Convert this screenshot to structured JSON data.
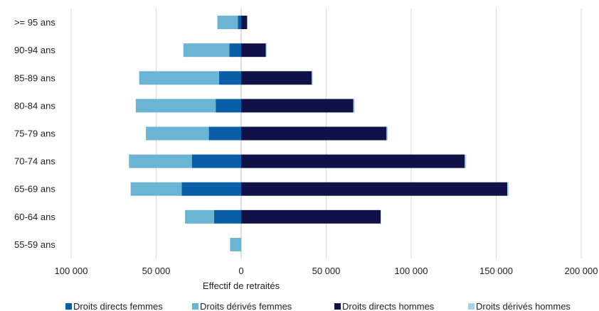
{
  "chart_data": {
    "type": "bar",
    "orientation": "horizontal",
    "stacked": true,
    "categories": [
      ">= 95 ans",
      "90-94 ans",
      "85-89 ans",
      "80-84 ans",
      "75-79 ans",
      "70-74 ans",
      "65-69 ans",
      "60-64 ans",
      "55-59 ans"
    ],
    "series": [
      {
        "name": "Droits directs femmes",
        "color": "#0a5ea8",
        "side": "negative",
        "values": [
          -2000,
          -7000,
          -13000,
          -15000,
          -19000,
          -29000,
          -35000,
          -16000,
          0
        ]
      },
      {
        "name": "Droits dérivés femmes",
        "color": "#6bb4d3",
        "side": "negative",
        "values": [
          -12000,
          -27000,
          -47000,
          -47000,
          -37000,
          -37000,
          -30000,
          -17000,
          -6500
        ]
      },
      {
        "name": "Droits directs hommes",
        "color": "#0f1147",
        "side": "positive",
        "values": [
          3500,
          14500,
          41500,
          66000,
          85500,
          131500,
          156500,
          82000,
          0
        ]
      },
      {
        "name": "Droits dérivés hommes",
        "color": "#a9d2e6",
        "side": "positive",
        "values": [
          300,
          500,
          700,
          800,
          800,
          800,
          800,
          300,
          0
        ]
      }
    ],
    "xlabel": "Effectif de retraités",
    "ylabel": "",
    "xlim": [
      -100000,
      200000
    ],
    "xticks": [
      -100000,
      -50000,
      0,
      50000,
      100000,
      150000,
      200000
    ],
    "xtick_labels": [
      "100 000",
      "50 000",
      "0",
      "50 000",
      "100 000",
      "150 000",
      "200 000"
    ],
    "grid": "vertical",
    "legend": "bottom"
  }
}
